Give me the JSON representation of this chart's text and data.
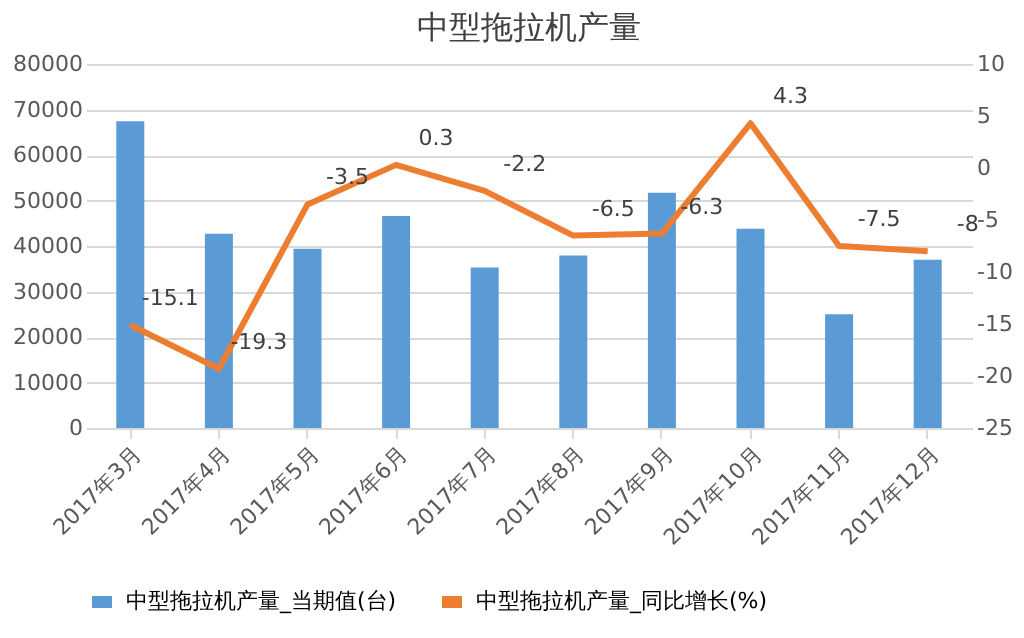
{
  "chart_data": {
    "type": "bar",
    "title": "中型拖拉机产量",
    "categories": [
      "2017年3月",
      "2017年4月",
      "2017年5月",
      "2017年6月",
      "2017年7月",
      "2017年8月",
      "2017年9月",
      "2017年10月",
      "2017年11月",
      "2017年12月"
    ],
    "series": [
      {
        "name": "中型拖拉机产量_当期值(台)",
        "color": "#5b9bd5",
        "values": [
          67400,
          42700,
          39400,
          46600,
          35300,
          37900,
          51700,
          43800,
          25000,
          37000
        ]
      },
      {
        "name": "中型拖拉机产量_同比增长(%)",
        "type": "line",
        "axis": "y2",
        "color": "#ed7d31",
        "data_labels": true,
        "values": [
          -15.1,
          -19.3,
          -3.5,
          0.3,
          -2.2,
          -6.5,
          -6.3,
          4.3,
          -7.5,
          -8
        ]
      }
    ],
    "ylim": [
      0,
      80000
    ],
    "yticks": [
      0,
      10000,
      20000,
      30000,
      40000,
      50000,
      60000,
      70000,
      80000
    ],
    "y2lim": [
      -25,
      10
    ],
    "y2ticks": [
      -25,
      -20,
      -15,
      -10,
      -5,
      0,
      5,
      10
    ],
    "grid": "y",
    "legend": "bottom"
  }
}
